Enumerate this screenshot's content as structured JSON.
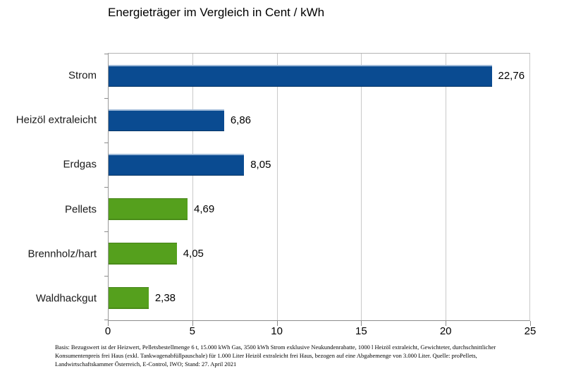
{
  "title": "Energieträger im Vergleich in Cent / kWh",
  "chart_data": {
    "type": "bar",
    "orientation": "horizontal",
    "title": "Energieträger im Vergleich in Cent / kWh",
    "categories": [
      "Strom",
      "Heizöl extraleicht",
      "Erdgas",
      "Pellets",
      "Brennholz/hart",
      "Waldhackgut"
    ],
    "values": [
      22.76,
      6.86,
      8.05,
      4.69,
      4.05,
      2.38
    ],
    "value_labels": [
      "22,76",
      "6,86",
      "8,05",
      "4,69",
      "4,05",
      "2,38"
    ],
    "bar_colors": [
      "#0a4b91",
      "#0a4b91",
      "#0a4b91",
      "#55a01d",
      "#55a01d",
      "#55a01d"
    ],
    "xlabel": "",
    "ylabel": "",
    "xlim": [
      0,
      25
    ],
    "x_ticks": [
      0,
      5,
      10,
      15,
      20,
      25
    ],
    "grid": true,
    "legend": false,
    "unit": "Cent / kWh"
  },
  "colors": {
    "bar_blue": "#0a4b91",
    "bar_green": "#55a01d",
    "gridline": "#c9c9c9",
    "axis": "#8c8c8c",
    "background": "#ffffff"
  },
  "footer": {
    "lines": [
      "Basis: Bezugswert ist der Heizwert, Pelletsbestellmenge 6 t, 15.000 kWh Gas, 3500 kWh Strom exklusive Neukundenrabatte, 1000 l Heizöl extraleicht, Gewichteter, durchschnittlicher",
      "Konsumentenpreis frei Haus (exkl. Tankwagenabfüllpauschale) für 1.000 Liter Heizöl extraleicht frei Haus, bezogen auf eine Abgabemenge von 3.000 Liter. Quelle: proPellets,",
      "Landwirtschaftskammer Österreich, E-Control, IWO; Stand: 27. April 2021"
    ]
  }
}
